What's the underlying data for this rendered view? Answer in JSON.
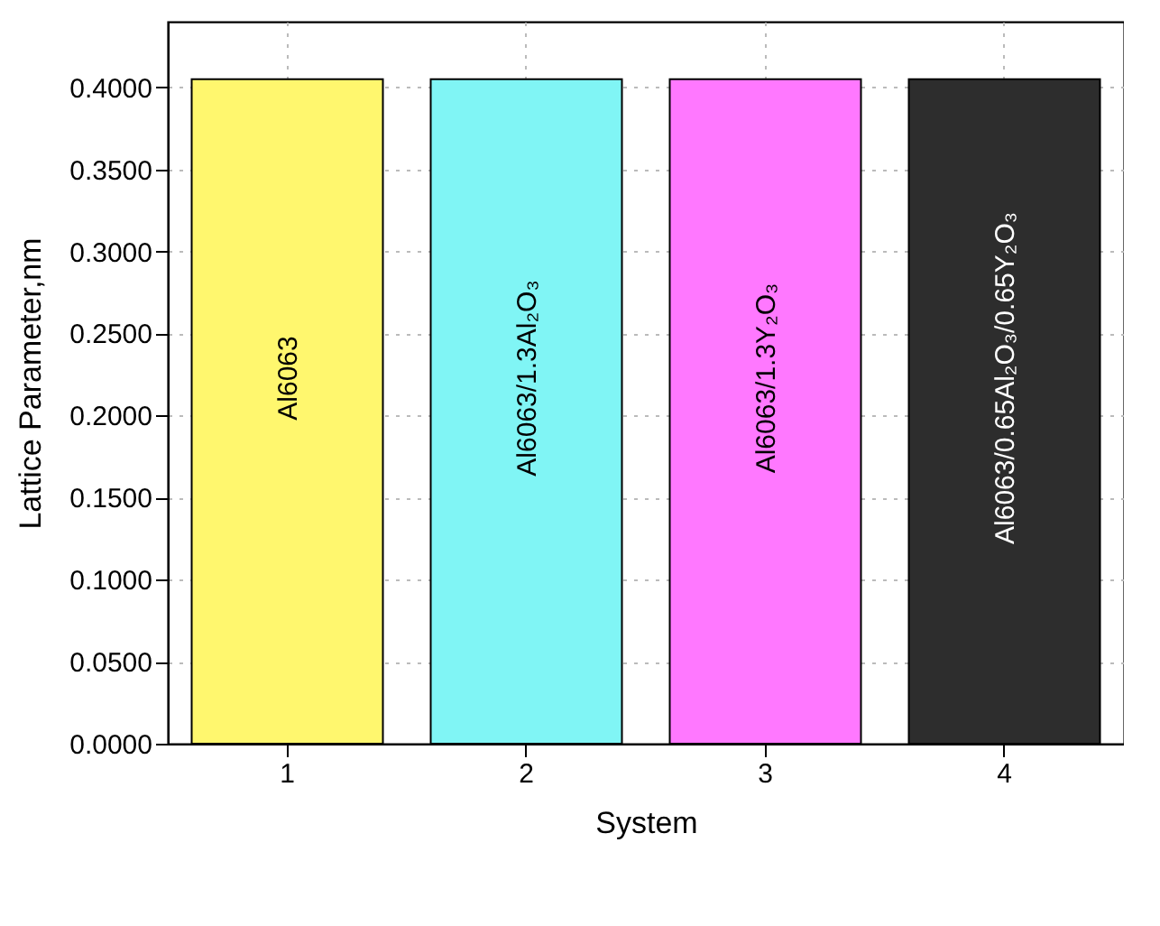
{
  "chart_data": {
    "type": "bar",
    "xlabel": "System",
    "ylabel": "Lattice Parameter,nm",
    "categories": [
      "1",
      "2",
      "3",
      "4"
    ],
    "values": [
      0.405,
      0.405,
      0.405,
      0.405
    ],
    "colors": [
      "#fff76e",
      "#80f5f5",
      "#ff78ff",
      "#2d2d2d"
    ],
    "ylim": [
      0,
      0.44
    ],
    "yticks": [
      {
        "value": 0,
        "label": "0.0000"
      },
      {
        "value": 0.05,
        "label": "0.0500"
      },
      {
        "value": 0.1,
        "label": "0.1000"
      },
      {
        "value": 0.15,
        "label": "0.1500"
      },
      {
        "value": 0.2,
        "label": "0.2000"
      },
      {
        "value": 0.25,
        "label": "0.2500"
      },
      {
        "value": 0.3,
        "label": "0.3000"
      },
      {
        "value": 0.35,
        "label": "0.3500"
      },
      {
        "value": 0.4,
        "label": "0.4000"
      }
    ],
    "grid": true,
    "annotations": [
      "Al6063",
      "Al6063/1.3Al₂O₃",
      "Al6063/1.3Y₂O₃",
      "Al6063/0.65Al₂O₃/0.65Y₂O₃"
    ]
  }
}
